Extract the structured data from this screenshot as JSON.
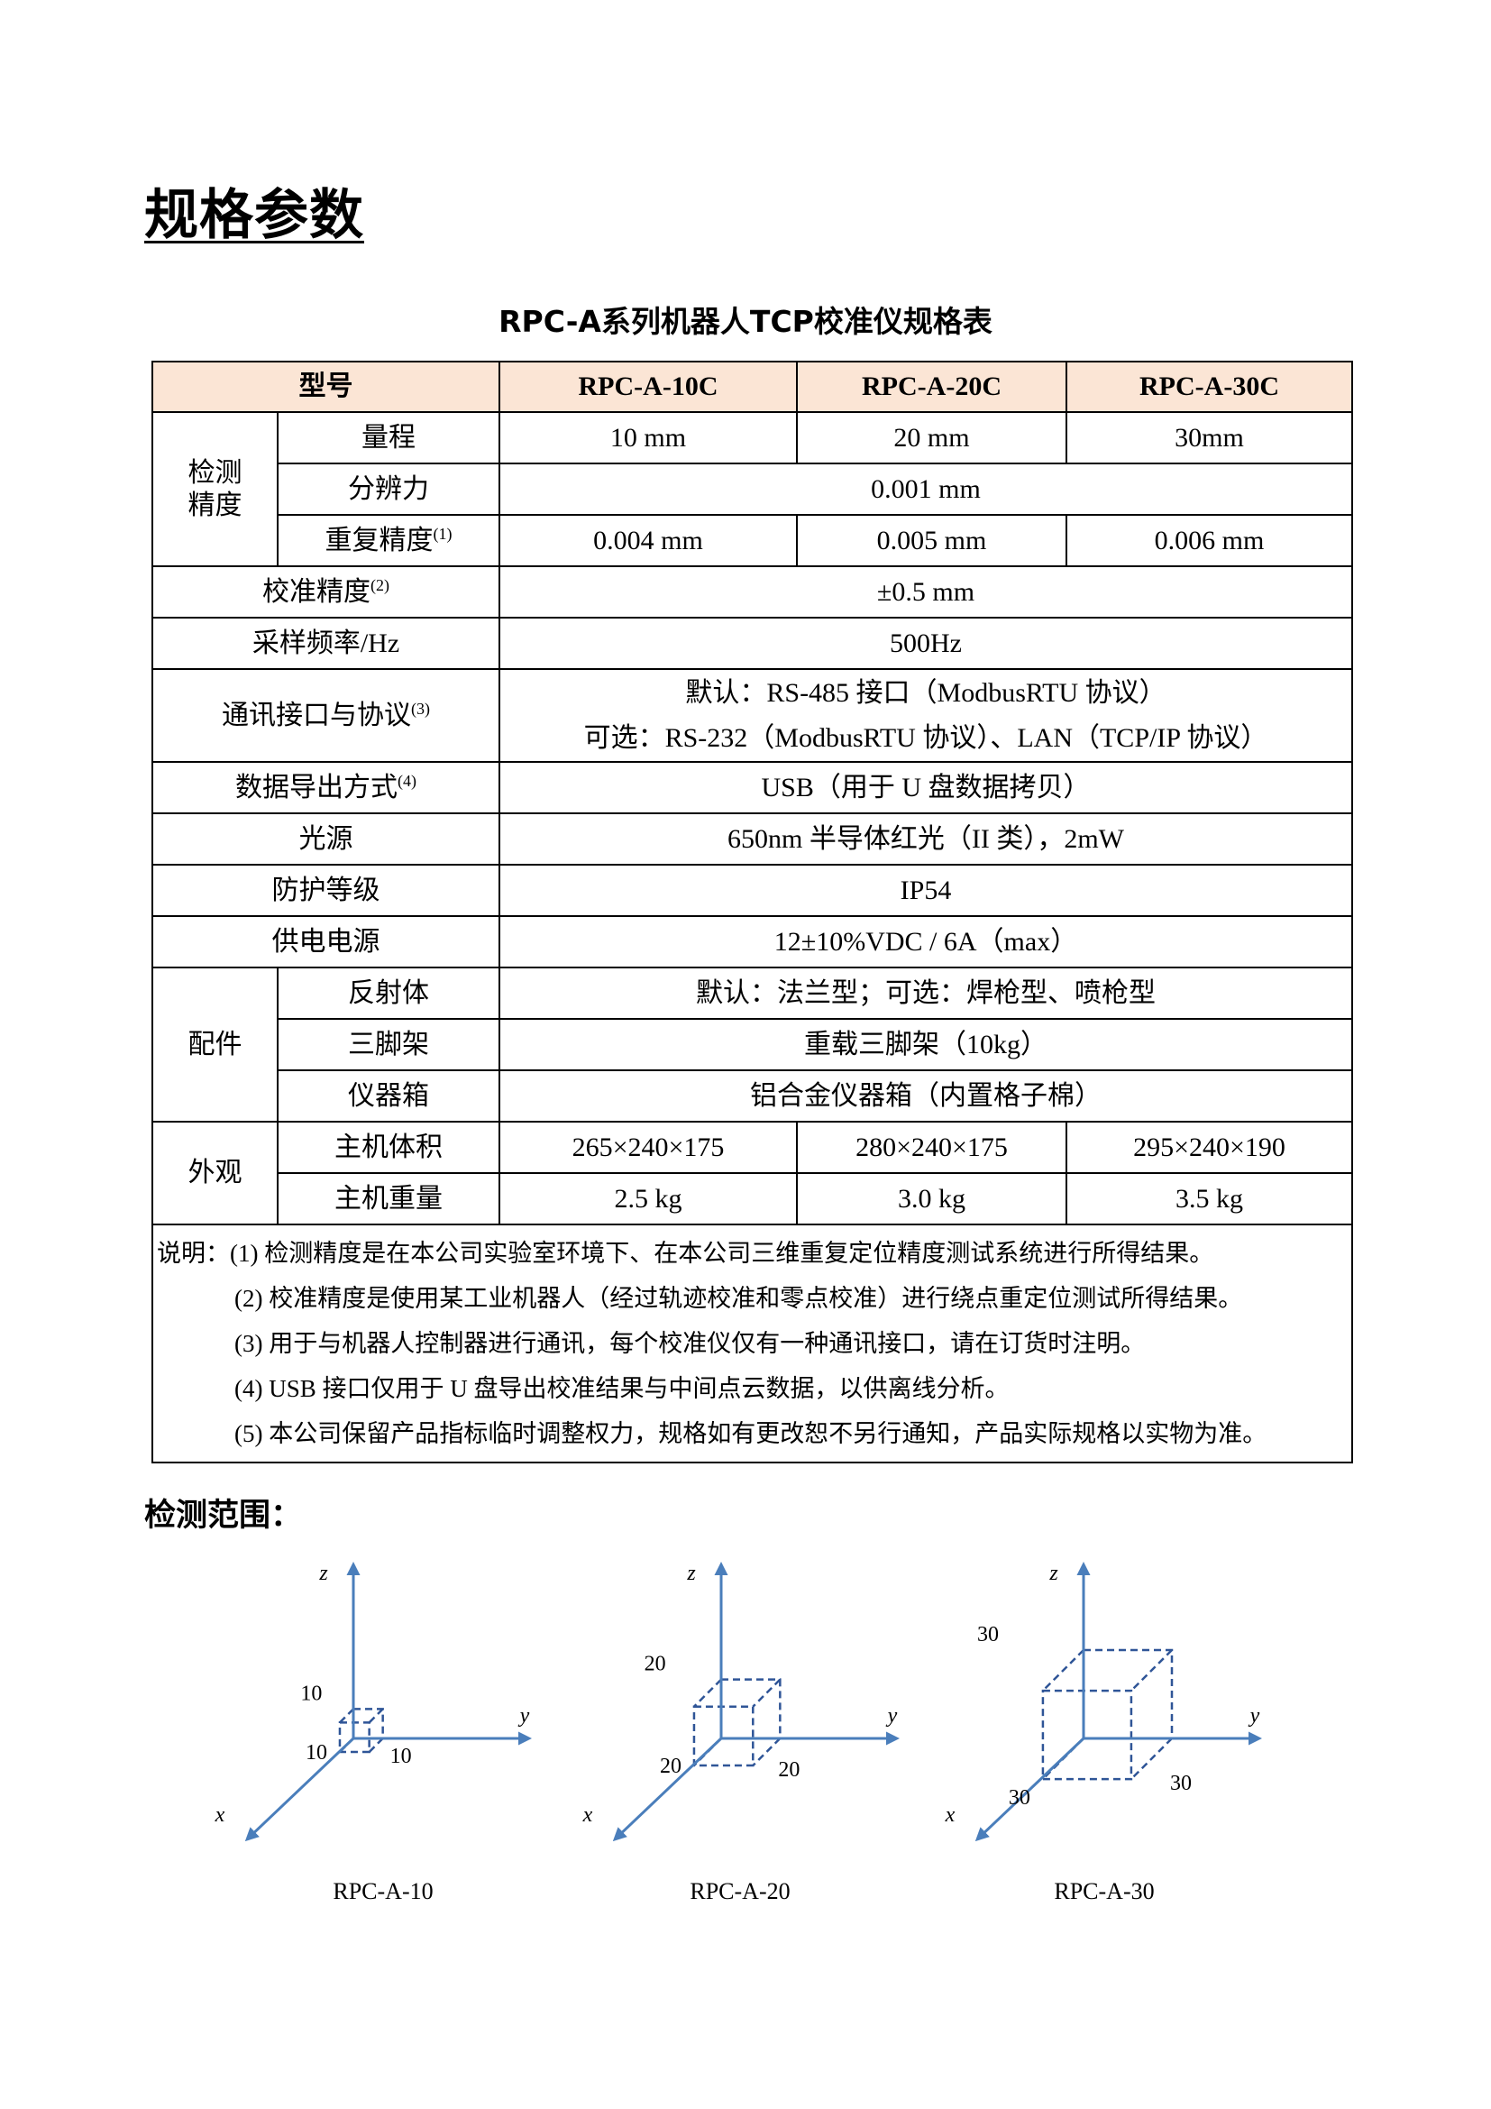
{
  "page_title": "规格参数",
  "table_title": "RPC-A系列机器人TCP校准仪规格表",
  "header": {
    "model_label": "型号",
    "models": [
      "RPC-A-10C",
      "RPC-A-20C",
      "RPC-A-30C"
    ]
  },
  "detection": {
    "group": "检测\n精度",
    "range": {
      "label": "量程",
      "values": [
        "10 mm",
        "20 mm",
        "30mm"
      ]
    },
    "resolution": {
      "label": "分辨力",
      "value": "0.001 mm"
    },
    "repeatability": {
      "label": "重复精度",
      "note": "(1)",
      "values": [
        "0.004 mm",
        "0.005 mm",
        "0.006 mm"
      ]
    }
  },
  "calibration": {
    "label": "校准精度",
    "note": "(2)",
    "value": "±0.5 mm"
  },
  "sampling": {
    "label": "采样频率/Hz",
    "value": "500Hz"
  },
  "comm": {
    "label": "通讯接口与协议",
    "note": "(3)",
    "line1": "默认：RS-485 接口（ModbusRTU 协议）",
    "line2": "可选：RS-232（ModbusRTU 协议）、LAN（TCP/IP 协议）"
  },
  "export": {
    "label": "数据导出方式",
    "note": "(4)",
    "value": "USB（用于 U 盘数据拷贝）"
  },
  "light": {
    "label": "光源",
    "value": "650nm 半导体红光（II 类），2mW"
  },
  "protection": {
    "label": "防护等级",
    "value": "IP54"
  },
  "power": {
    "label": "供电电源",
    "value": "12±10%VDC / 6A（max）"
  },
  "accessories": {
    "group": "配件",
    "reflector": {
      "label": "反射体",
      "value": "默认：法兰型；可选：焊枪型、喷枪型"
    },
    "tripod": {
      "label": "三脚架",
      "value": "重载三脚架（10kg）"
    },
    "case": {
      "label": "仪器箱",
      "value": "铝合金仪器箱（内置格子棉）"
    }
  },
  "appearance": {
    "group": "外观",
    "volume": {
      "label": "主机体积",
      "values": [
        "265×240×175",
        "280×240×175",
        "295×240×190"
      ]
    },
    "weight": {
      "label": "主机重量",
      "values": [
        "2.5 kg",
        "3.0 kg",
        "3.5 kg"
      ]
    }
  },
  "notes": {
    "prefix": "说明：",
    "items": [
      "(1) 检测精度是在本公司实验室环境下、在本公司三维重复定位精度测试系统进行所得结果。",
      "(2) 校准精度是使用某工业机器人（经过轨迹校准和零点校准）进行绕点重定位测试所得结果。",
      "(3) 用于与机器人控制器进行通讯，每个校准仪仅有一种通讯接口，请在订货时注明。",
      "(4)  USB 接口仅用于 U 盘导出校准结果与中间点云数据，以供离线分析。",
      "(5) 本公司保留产品指标临时调整权力，规格如有更改恕不另行通知，产品实际规格以实物为准。"
    ]
  },
  "range_section_title": "检测范围：",
  "axis_color": "#4a7ebb",
  "cube_color": "#2f5597",
  "diagrams": [
    {
      "caption": "RPC-A-10",
      "size": 10,
      "axes": {
        "x": "x",
        "y": "y",
        "z": "z"
      },
      "labels": [
        "10",
        "10",
        "10"
      ]
    },
    {
      "caption": "RPC-A-20",
      "size": 20,
      "axes": {
        "x": "x",
        "y": "y",
        "z": "z"
      },
      "labels": [
        "20",
        "20",
        "20"
      ]
    },
    {
      "caption": "RPC-A-30",
      "size": 30,
      "axes": {
        "x": "x",
        "y": "y",
        "z": "z"
      },
      "labels": [
        "30",
        "30",
        "30"
      ]
    }
  ]
}
